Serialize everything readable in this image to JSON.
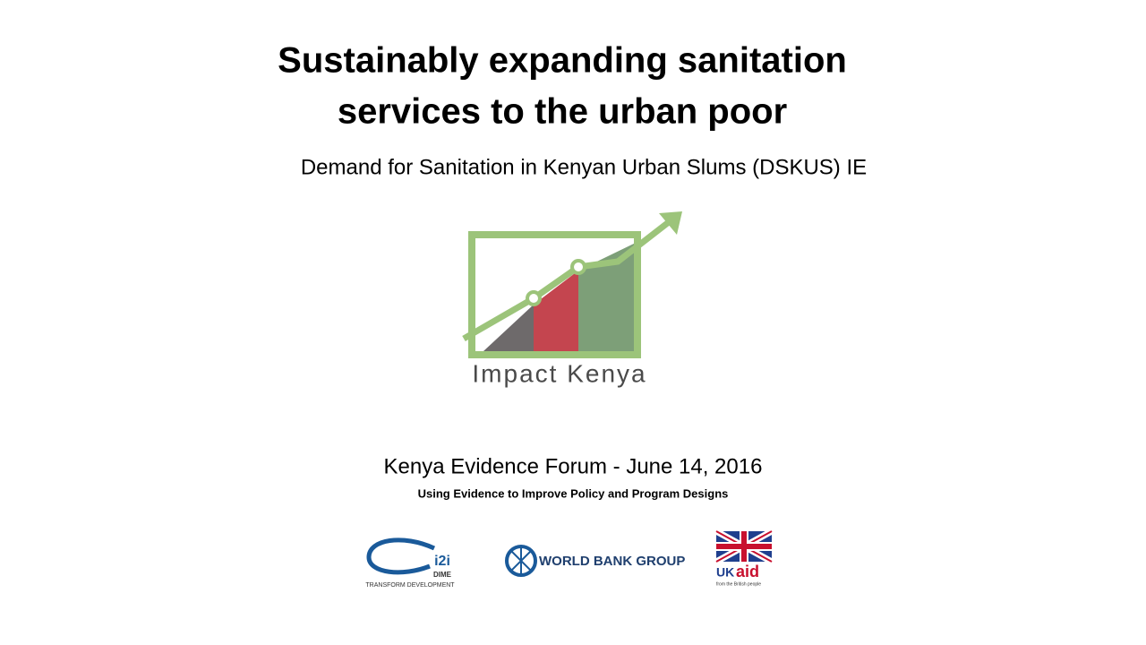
{
  "slide": {
    "title_lines": [
      "Sustainably expanding sanitation",
      "services to the urban poor"
    ],
    "subtitle": "Demand for Sanitation in Kenyan Urban Slums (DSKUS) IE",
    "logo_text": "Impact Kenya",
    "event": "Kenya Evidence Forum - June 14, 2016",
    "tagline": "Using Evidence to Improve Policy and Program Designs",
    "partners": {
      "i2i": "i2i",
      "dime": "DIME",
      "i2i_tagline": "TRANSFORM DEVELOPMENT",
      "world_bank": "WORLD BANK GROUP",
      "uk": "UK",
      "aid": "aid",
      "ukaid_tagline": "from the British people"
    }
  }
}
